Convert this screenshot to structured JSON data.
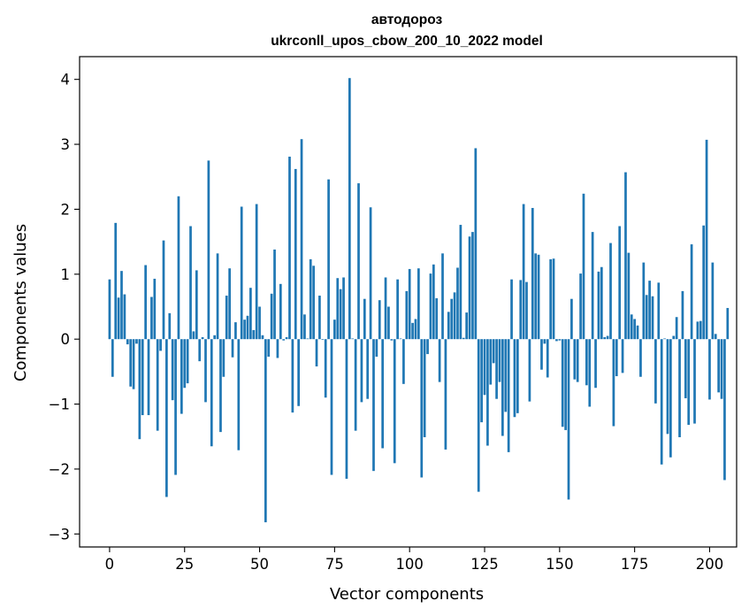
{
  "chart_data": {
    "type": "bar",
    "title_line1": "автодороз",
    "title_line2": "ukrconll_upos_cbow_200_10_2022 model",
    "xlabel": "Vector components",
    "ylabel": "Components values",
    "xlim": [
      -10,
      209
    ],
    "ylim": [
      -3.2,
      4.35
    ],
    "xticks": [
      0,
      25,
      50,
      75,
      100,
      125,
      150,
      175,
      200
    ],
    "yticks": [
      -3,
      -2,
      -1,
      0,
      1,
      2,
      3,
      4
    ],
    "ytick_labels": [
      "−3",
      "−2",
      "−1",
      "0",
      "1",
      "2",
      "3",
      "4"
    ],
    "bar_color": "#1f77b4",
    "grid": false,
    "values": [
      0.92,
      -0.58,
      1.79,
      0.64,
      1.05,
      0.69,
      -0.08,
      -0.73,
      -0.77,
      -0.07,
      -1.54,
      -1.17,
      1.14,
      -1.17,
      0.65,
      0.93,
      -1.41,
      -0.18,
      1.52,
      -2.43,
      0.4,
      -0.94,
      -2.09,
      2.2,
      -1.15,
      -0.75,
      -0.68,
      1.74,
      0.12,
      1.06,
      -0.34,
      0.03,
      -0.97,
      2.75,
      -1.65,
      0.06,
      1.32,
      -1.43,
      -0.58,
      0.67,
      1.09,
      -0.28,
      0.26,
      -1.71,
      2.04,
      0.3,
      0.36,
      0.79,
      0.14,
      2.08,
      0.5,
      0.06,
      -2.82,
      -0.27,
      0.7,
      1.38,
      -0.29,
      0.85,
      -0.02,
      0.03,
      2.81,
      -1.13,
      2.62,
      -1.03,
      3.08,
      0.38,
      0.01,
      1.23,
      1.13,
      -0.42,
      0.67,
      -0.01,
      -0.9,
      2.46,
      -2.09,
      0.3,
      0.94,
      0.77,
      0.95,
      -2.15,
      4.02,
      0.01,
      -1.41,
      2.4,
      -0.97,
      0.62,
      -0.92,
      2.03,
      -2.03,
      -0.27,
      0.6,
      -1.68,
      0.95,
      0.5,
      -0.02,
      -1.91,
      0.92,
      0.01,
      -0.69,
      0.74,
      1.08,
      0.25,
      0.31,
      1.09,
      -2.13,
      -1.51,
      -0.23,
      1.01,
      1.15,
      0.63,
      -0.66,
      1.32,
      -1.7,
      0.42,
      0.62,
      0.72,
      1.1,
      1.76,
      0.02,
      0.41,
      1.58,
      1.65,
      2.94,
      -2.35,
      -1.28,
      -0.86,
      -1.64,
      -0.7,
      -0.37,
      -0.92,
      -0.66,
      -1.49,
      -1.12,
      -1.74,
      0.92,
      -1.2,
      -1.14,
      0.91,
      2.08,
      0.88,
      -0.96,
      2.02,
      1.32,
      1.3,
      -0.47,
      -0.07,
      -0.59,
      1.23,
      1.24,
      -0.03,
      -0.02,
      -1.35,
      -1.4,
      -2.47,
      0.62,
      -0.62,
      -0.66,
      1.01,
      2.24,
      -0.71,
      -1.04,
      1.65,
      -0.75,
      1.04,
      1.11,
      0.03,
      0.05,
      1.48,
      -1.34,
      -0.57,
      1.74,
      -0.52,
      2.57,
      1.33,
      0.38,
      0.31,
      0.21,
      -0.58,
      1.18,
      0.68,
      0.9,
      0.66,
      -0.99,
      0.87,
      -1.93,
      0.01,
      -1.46,
      -1.82,
      0.05,
      0.34,
      -1.51,
      0.74,
      -0.91,
      -1.32,
      1.46,
      -1.3,
      0.27,
      0.28,
      1.75,
      3.07,
      -0.93,
      1.18,
      0.08,
      -0.82,
      -0.92,
      -2.17,
      0.48
    ]
  }
}
